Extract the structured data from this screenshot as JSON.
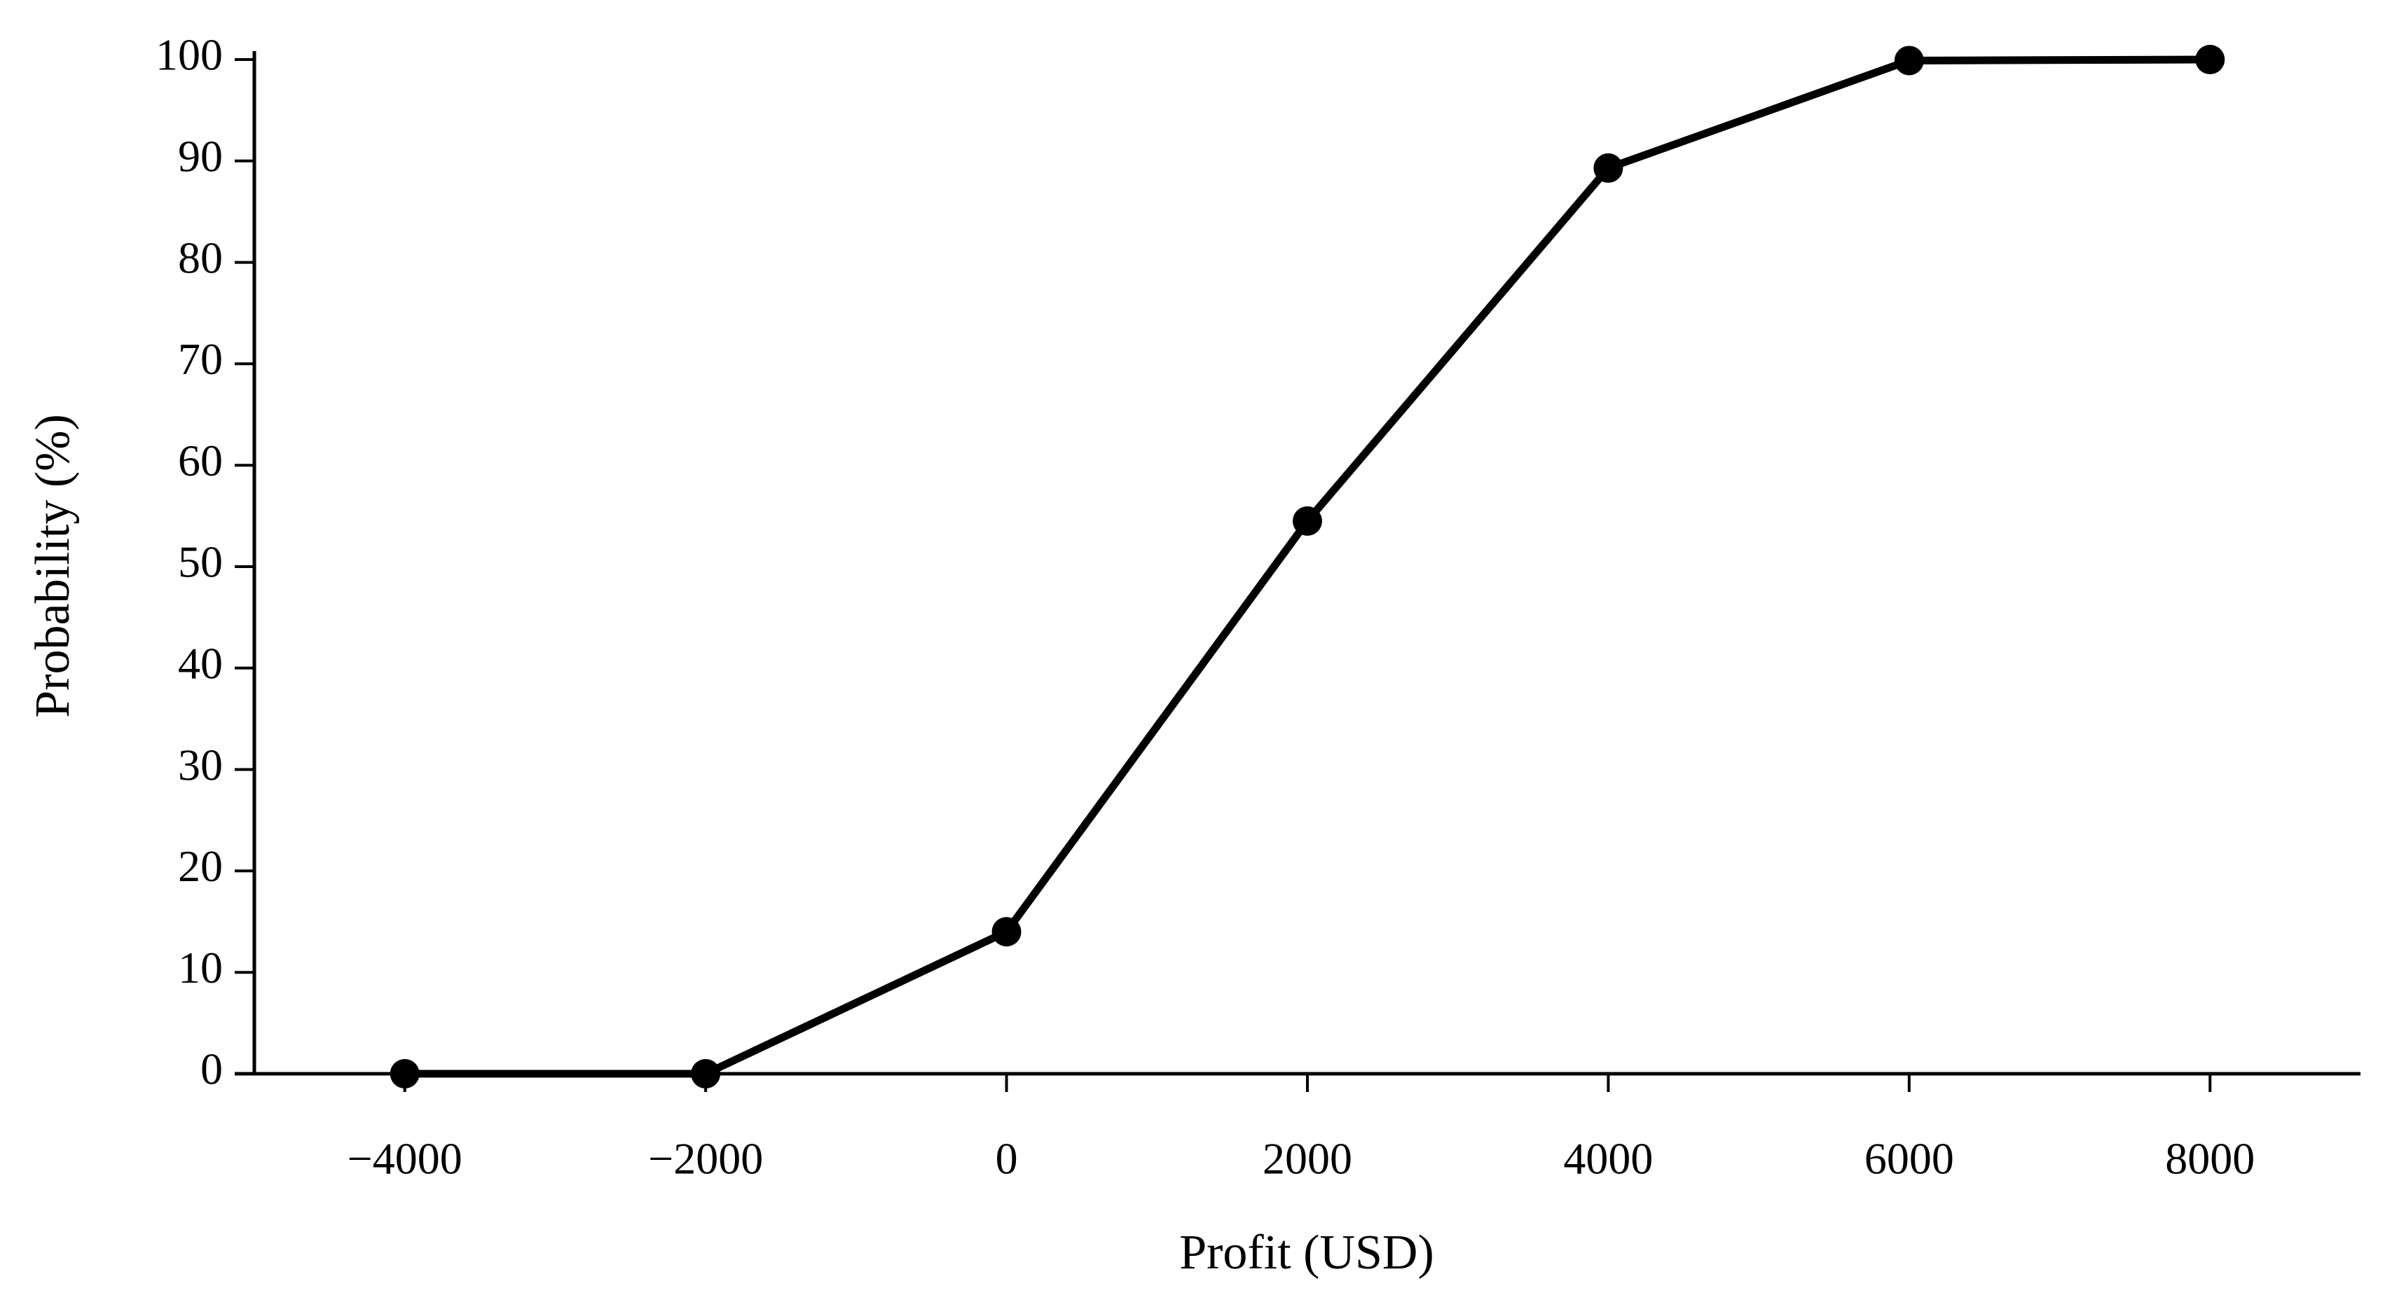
{
  "chart_data": {
    "type": "line",
    "x_label": "Profit (USD)",
    "y_label": "Probability (%)",
    "x": [
      -4000,
      -2000,
      0,
      2000,
      4000,
      6000,
      8000
    ],
    "series": [
      {
        "name": "Probability",
        "color": "#000000",
        "values": [
          0,
          0,
          14,
          54.5,
          89.3,
          99.9,
          100
        ]
      }
    ],
    "xlim": [
      -5000,
      9000
    ],
    "xticks": [
      {
        "value": -4000,
        "label": "−4000"
      },
      {
        "value": -2000,
        "label": "−2000"
      },
      0,
      2000,
      4000,
      6000,
      8000
    ],
    "ylim": [
      0,
      100
    ],
    "yticks": [
      0,
      10,
      20,
      30,
      40,
      50,
      60,
      70,
      80,
      90,
      100
    ],
    "grid": false
  }
}
